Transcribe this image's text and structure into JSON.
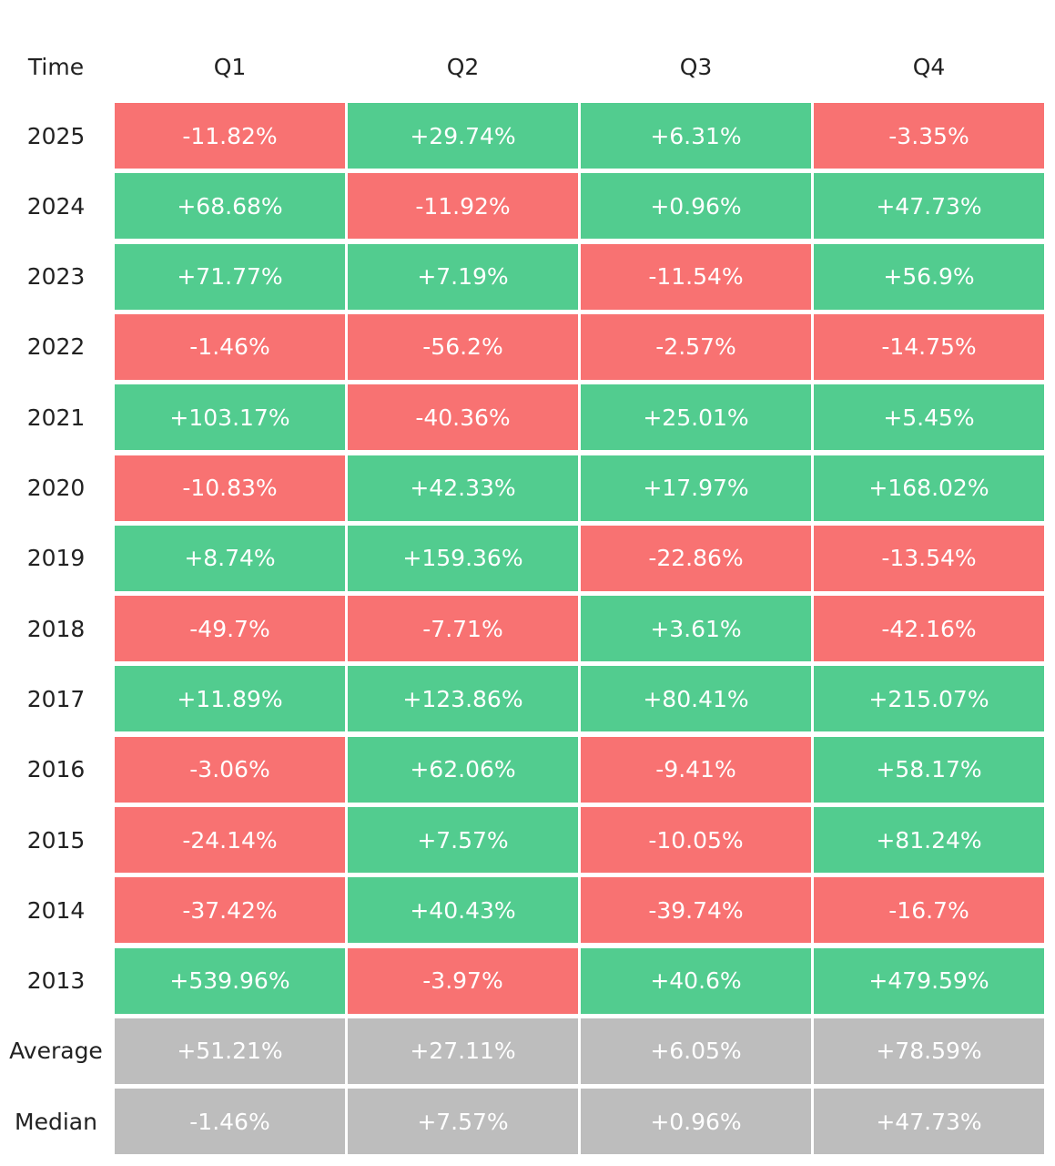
{
  "table": {
    "header": [
      "Time",
      "Q1",
      "Q2",
      "Q3",
      "Q4"
    ],
    "rows": [
      [
        "2025",
        "-11.82%",
        "+29.74%",
        "+6.31%",
        "-3.35%"
      ],
      [
        "2024",
        "+68.68%",
        "-11.92%",
        "+0.96%",
        "+47.73%"
      ],
      [
        "2023",
        "+71.77%",
        "+7.19%",
        "-11.54%",
        "+56.9%"
      ],
      [
        "2022",
        "-1.46%",
        "-56.2%",
        "-2.57%",
        "-14.75%"
      ],
      [
        "2021",
        "+103.17%",
        "-40.36%",
        "+25.01%",
        "+5.45%"
      ],
      [
        "2020",
        "-10.83%",
        "+42.33%",
        "+17.97%",
        "+168.02%"
      ],
      [
        "2019",
        "+8.74%",
        "+159.36%",
        "-22.86%",
        "-13.54%"
      ],
      [
        "2018",
        "-49.7%",
        "-7.71%",
        "+3.61%",
        "-42.16%"
      ],
      [
        "2017",
        "+11.89%",
        "+123.86%",
        "+80.41%",
        "+215.07%"
      ],
      [
        "2016",
        "-3.06%",
        "+62.06%",
        "-9.41%",
        "+58.17%"
      ],
      [
        "2015",
        "-24.14%",
        "+7.57%",
        "-10.05%",
        "+81.24%"
      ],
      [
        "2014",
        "-37.42%",
        "+40.43%",
        "-39.74%",
        "-16.7%"
      ],
      [
        "2013",
        "+539.96%",
        "-3.97%",
        "+40.6%",
        "+479.59%"
      ]
    ],
    "summary_rows": [
      [
        "Average",
        "+51.21%",
        "+27.11%",
        "+6.05%",
        "+78.59%"
      ],
      [
        "Median",
        "-1.46%",
        "+7.57%",
        "+0.96%",
        "+47.73%"
      ]
    ],
    "colors": {
      "positive": "#52cc8f",
      "negative": "#f87272",
      "summary": "#bdbdbd"
    }
  }
}
